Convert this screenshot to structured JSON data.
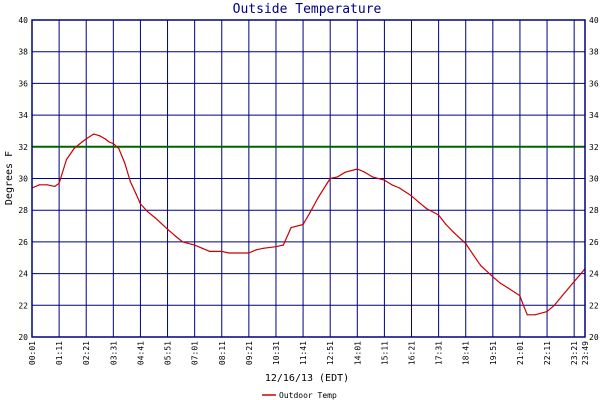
{
  "chart_data": {
    "type": "line",
    "title": "Outside Temperature",
    "xlabel": "12/16/13 (EDT)",
    "ylabel": "Degrees F",
    "ylim": [
      20,
      40
    ],
    "yticks": [
      "20",
      "22",
      "24",
      "26",
      "28",
      "30",
      "32",
      "34",
      "36",
      "38",
      "40"
    ],
    "xticks": [
      "00:01",
      "01:11",
      "02:21",
      "03:31",
      "04:41",
      "05:51",
      "07:01",
      "08:11",
      "09:21",
      "10:31",
      "11:41",
      "12:51",
      "14:01",
      "15:11",
      "16:21",
      "17:31",
      "18:41",
      "19:51",
      "21:01",
      "22:11",
      "23:21",
      "23:49"
    ],
    "reference_line": {
      "value": 32,
      "color": "#006400"
    },
    "grid": true,
    "legend": {
      "placement": "bottom",
      "entries": [
        "Outdoor Temp"
      ]
    },
    "colors": {
      "grid": "#000080",
      "series": "#cc0000",
      "frame": "#000080",
      "title": "#000080"
    },
    "series": [
      {
        "name": "Outdoor Temp",
        "x": [
          "00:01",
          "00:20",
          "00:40",
          "01:00",
          "01:11",
          "01:30",
          "01:50",
          "02:10",
          "02:21",
          "02:40",
          "02:55",
          "03:10",
          "03:20",
          "03:31",
          "03:45",
          "04:00",
          "04:15",
          "04:30",
          "04:41",
          "05:00",
          "05:20",
          "05:51",
          "06:10",
          "06:30",
          "07:01",
          "07:20",
          "07:40",
          "08:11",
          "08:30",
          "08:50",
          "09:21",
          "09:40",
          "10:00",
          "10:31",
          "10:50",
          "11:10",
          "11:41",
          "12:00",
          "12:20",
          "12:51",
          "13:10",
          "13:30",
          "14:01",
          "14:20",
          "14:40",
          "15:11",
          "15:30",
          "15:50",
          "16:21",
          "16:40",
          "17:00",
          "17:31",
          "17:50",
          "18:10",
          "18:41",
          "19:00",
          "19:20",
          "19:51",
          "20:10",
          "20:30",
          "21:01",
          "21:10",
          "21:20",
          "21:40",
          "22:11",
          "22:30",
          "22:50",
          "23:21",
          "23:35",
          "23:49"
        ],
        "values": [
          29.4,
          29.6,
          29.6,
          29.5,
          29.7,
          31.2,
          31.9,
          32.3,
          32.5,
          32.8,
          32.7,
          32.5,
          32.3,
          32.2,
          31.9,
          31.0,
          29.8,
          29.0,
          28.4,
          27.9,
          27.5,
          26.8,
          26.4,
          26.0,
          25.8,
          25.6,
          25.4,
          25.4,
          25.3,
          25.3,
          25.3,
          25.5,
          25.6,
          25.7,
          25.8,
          26.9,
          27.1,
          27.9,
          28.8,
          30.0,
          30.1,
          30.4,
          30.6,
          30.4,
          30.1,
          29.9,
          29.6,
          29.4,
          28.9,
          28.5,
          28.1,
          27.7,
          27.1,
          26.6,
          25.9,
          25.2,
          24.5,
          23.8,
          23.4,
          23.1,
          22.6,
          22.0,
          21.4,
          21.4,
          21.6,
          22.0,
          22.6,
          23.5,
          23.9,
          24.3
        ]
      }
    ]
  }
}
